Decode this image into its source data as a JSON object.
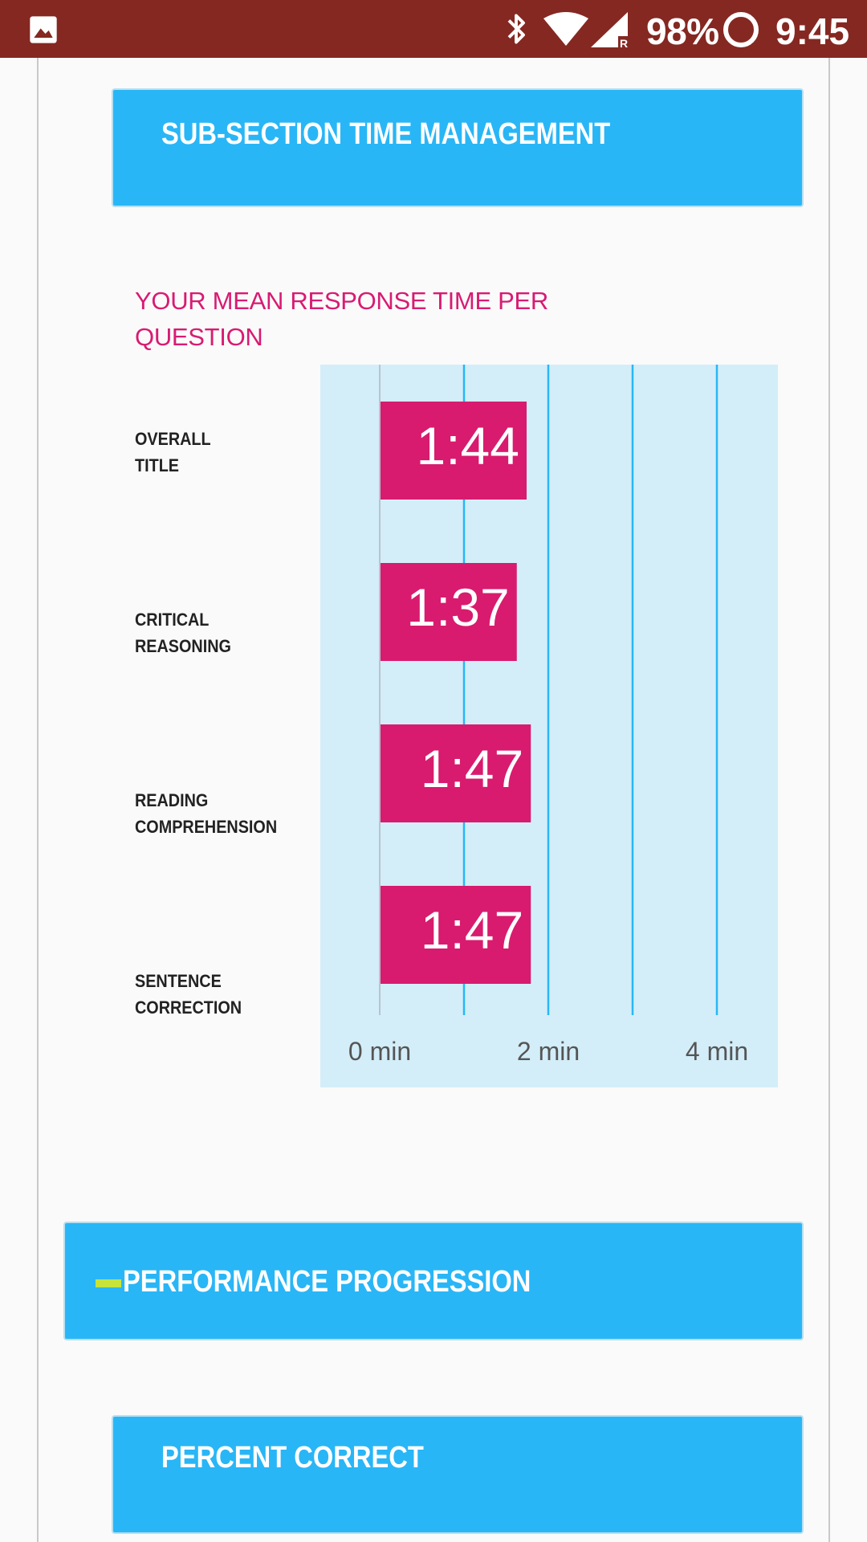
{
  "status_bar": {
    "battery": "98%",
    "time": "9:45"
  },
  "sections": {
    "time_management": "SUB-SECTION TIME MANAGEMENT",
    "performance_progression": "PERFORMANCE PROGRESSION",
    "percent_correct": "PERCENT CORRECT"
  },
  "chart_data": {
    "type": "bar",
    "orientation": "horizontal",
    "title": "YOUR MEAN RESPONSE TIME PER QUESTION",
    "categories": [
      "OVERALL\nTITLE",
      "CRITICAL\nREASONING",
      "READING\nCOMPREHENSION",
      "SENTENCE\nCORRECTION"
    ],
    "values": [
      1.7333,
      1.6167,
      1.7833,
      1.7833
    ],
    "data_labels": [
      "1:44",
      "1:37",
      "1:47",
      "1:47"
    ],
    "xlim": [
      0,
      4.5
    ],
    "x_ticks": [
      0,
      2,
      4
    ],
    "x_tick_labels": [
      "0 min",
      "2 min",
      "4 min"
    ],
    "gridlines": [
      1,
      2,
      3,
      4
    ],
    "xlabel": "",
    "ylabel": "",
    "grid": true,
    "bar_color": "#d81b6e",
    "grid_color": "#29b6f6",
    "background_color": "#d3eef9"
  },
  "colors": {
    "status_bar": "#852822",
    "header_blue": "#29b6f6",
    "title_pink": "#d81b72",
    "accent_dash": "#c6e33b"
  }
}
